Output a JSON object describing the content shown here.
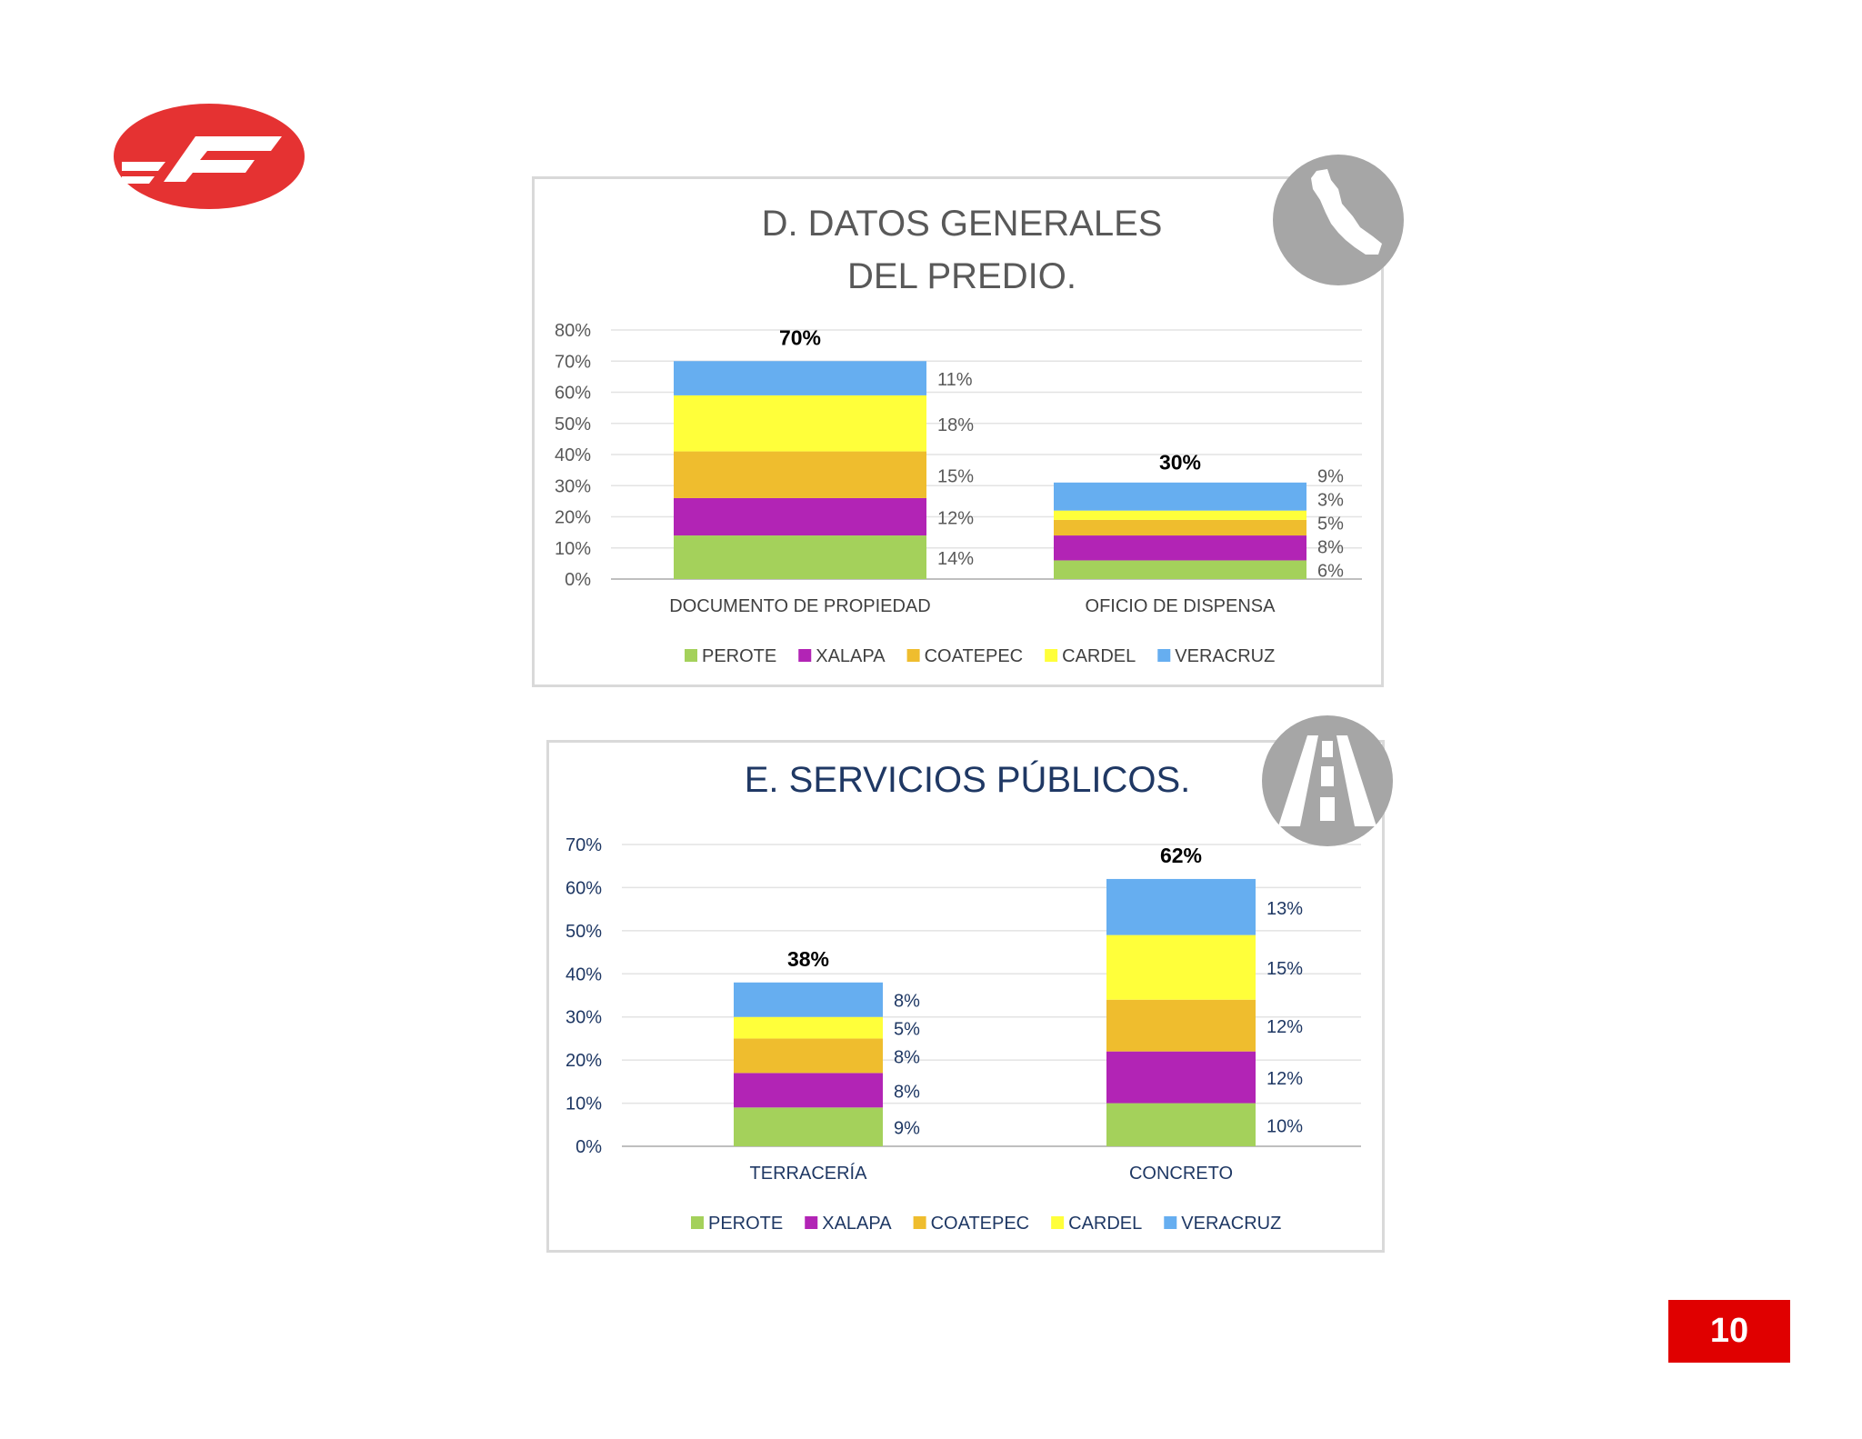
{
  "page": {
    "number": "10"
  },
  "colors": {
    "PEROTE": "#a4d15b",
    "XALAPA": "#b224b5",
    "COATEPEC": "#efbd2e",
    "CARDEL": "#ffff3a",
    "VERACRUZ": "#66aef0",
    "logo_red": "#e53232",
    "icon_gray": "#a6a6a6",
    "title_gray": "#595959",
    "title_navy": "#1f3864"
  },
  "icons": {
    "chart_d": "veracruz-map-icon",
    "chart_e": "road-icon",
    "logo": "company-logo"
  },
  "chart_data": [
    {
      "type": "bar",
      "stacked": true,
      "title_lines": [
        "D. DATOS GENERALES",
        "DEL PREDIO."
      ],
      "categories": [
        "DOCUMENTO DE PROPIEDAD",
        "OFICIO DE DISPENSA"
      ],
      "series": [
        {
          "name": "PEROTE",
          "values": [
            14,
            6
          ],
          "labels": [
            "14%",
            "6%"
          ]
        },
        {
          "name": "XALAPA",
          "values": [
            12,
            8
          ],
          "labels": [
            "12%",
            "8%"
          ]
        },
        {
          "name": "COATEPEC",
          "values": [
            15,
            5
          ],
          "labels": [
            "15%",
            "5%"
          ]
        },
        {
          "name": "CARDEL",
          "values": [
            18,
            3
          ],
          "labels": [
            "18%",
            "3%"
          ]
        },
        {
          "name": "VERACRUZ",
          "values": [
            11,
            9
          ],
          "labels": [
            "11%",
            "9%"
          ]
        }
      ],
      "totals": [
        70,
        30
      ],
      "total_labels": [
        "70%",
        "30%"
      ],
      "ylim": [
        0,
        80
      ],
      "ytick_labels": [
        "0%",
        "10%",
        "20%",
        "30%",
        "40%",
        "50%",
        "60%",
        "70%",
        "80%"
      ],
      "grid": true,
      "legend": "bottom"
    },
    {
      "type": "bar",
      "stacked": true,
      "title_lines": [
        "E. SERVICIOS PÚBLICOS."
      ],
      "categories": [
        "TERRACERÍA",
        "CONCRETO"
      ],
      "series": [
        {
          "name": "PEROTE",
          "values": [
            9,
            10
          ],
          "labels": [
            "9%",
            "10%"
          ]
        },
        {
          "name": "XALAPA",
          "values": [
            8,
            12
          ],
          "labels": [
            "8%",
            "12%"
          ]
        },
        {
          "name": "COATEPEC",
          "values": [
            8,
            12
          ],
          "labels": [
            "8%",
            "12%"
          ]
        },
        {
          "name": "CARDEL",
          "values": [
            5,
            15
          ],
          "labels": [
            "5%",
            "15%"
          ]
        },
        {
          "name": "VERACRUZ",
          "values": [
            8,
            13
          ],
          "labels": [
            "8%",
            "13%"
          ]
        }
      ],
      "totals": [
        38,
        62
      ],
      "total_labels": [
        "38%",
        "62%"
      ],
      "ylim": [
        0,
        70
      ],
      "ytick_labels": [
        "0%",
        "10%",
        "20%",
        "30%",
        "40%",
        "50%",
        "60%",
        "70%"
      ],
      "grid": true,
      "legend": "bottom"
    }
  ]
}
